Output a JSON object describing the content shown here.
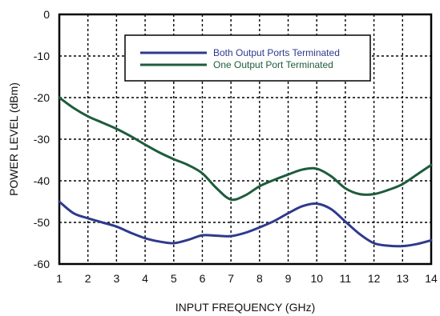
{
  "chart_data": {
    "type": "line",
    "xlabel": "INPUT FREQUENCY (GHz)",
    "ylabel": "POWER LEVEL (dBm)",
    "xlim": [
      1,
      14
    ],
    "ylim": [
      -60,
      0
    ],
    "x_ticks": [
      "1",
      "2",
      "3",
      "4",
      "5",
      "6",
      "7",
      "8",
      "9",
      "10",
      "11",
      "12",
      "13",
      "14"
    ],
    "y_ticks": [
      "0",
      "-10",
      "-20",
      "-30",
      "-40",
      "-50",
      "-60"
    ],
    "grid": "dashed",
    "legend_position": "top-right",
    "series": [
      {
        "name": "Both Output Ports Terminated",
        "color": "#2e3a8c",
        "x": [
          1,
          1.5,
          2,
          2.5,
          3,
          3.5,
          4,
          4.5,
          5,
          5.5,
          6,
          6.5,
          7,
          7.5,
          8,
          8.5,
          9,
          9.5,
          10,
          10.5,
          11,
          11.5,
          12,
          12.5,
          13,
          13.5,
          14
        ],
        "values": [
          -45,
          -47.8,
          -49,
          -50,
          -51,
          -52.5,
          -53.8,
          -54.6,
          -55,
          -54.2,
          -53.1,
          -53.2,
          -53.3,
          -52.5,
          -51.2,
          -49.7,
          -47.8,
          -46.1,
          -45.5,
          -46.8,
          -49.8,
          -52.8,
          -55,
          -55.6,
          -55.7,
          -55.2,
          -54.3
        ]
      },
      {
        "name": "One Output Port Terminated",
        "color": "#1e5c3c",
        "x": [
          1,
          1.5,
          2,
          2.5,
          3,
          3.5,
          4,
          4.5,
          5,
          5.5,
          6,
          6.5,
          7,
          7.5,
          8,
          8.5,
          9,
          9.5,
          10,
          10.5,
          11,
          11.5,
          12,
          12.5,
          13,
          13.5,
          14
        ],
        "values": [
          -20,
          -22.5,
          -24.5,
          -26,
          -27.5,
          -29.3,
          -31.3,
          -33.2,
          -34.8,
          -36.2,
          -38.2,
          -41.8,
          -44.5,
          -43.5,
          -41.3,
          -39.8,
          -38.5,
          -37.3,
          -37.1,
          -38.9,
          -41.8,
          -43.2,
          -43.2,
          -42.2,
          -40.8,
          -38.5,
          -36.2
        ]
      }
    ]
  }
}
